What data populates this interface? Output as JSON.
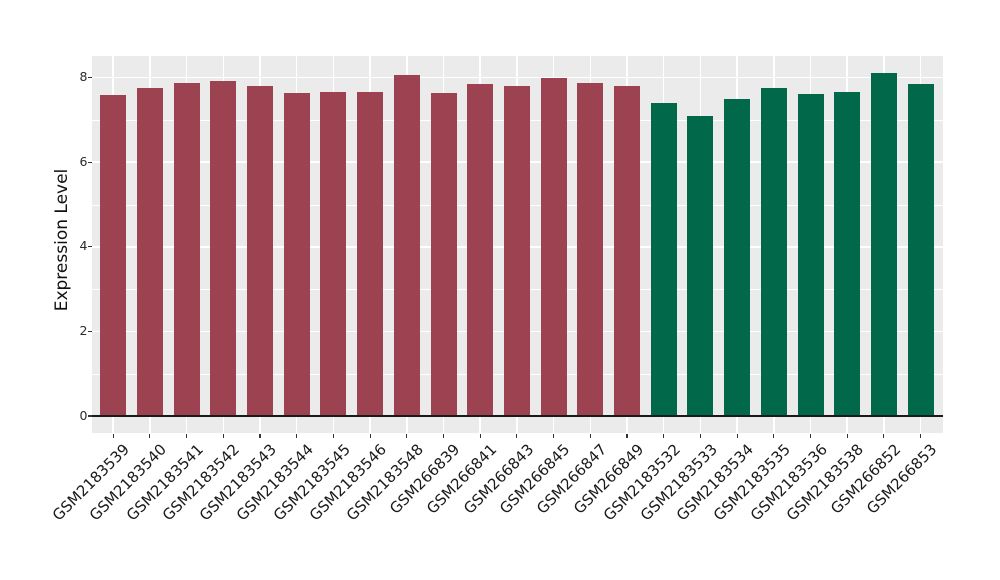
{
  "chart_data": {
    "type": "bar",
    "title": "",
    "xlabel": "",
    "ylabel": "Expression Level",
    "ylim": [
      0,
      8.5
    ],
    "yticks": [
      0,
      2,
      4,
      6,
      8
    ],
    "ytick_labels": [
      "0",
      "2",
      "4",
      "6",
      "8"
    ],
    "grid": "on",
    "legend_position": "none",
    "categories": [
      "GSM2183539",
      "GSM2183540",
      "GSM2183541",
      "GSM2183542",
      "GSM2183543",
      "GSM2183544",
      "GSM2183545",
      "GSM2183546",
      "GSM2183548",
      "GSM266839",
      "GSM266841",
      "GSM266843",
      "GSM266845",
      "GSM266847",
      "GSM266849",
      "GSM2183532",
      "GSM2183533",
      "GSM2183534",
      "GSM2183535",
      "GSM2183536",
      "GSM2183538",
      "GSM266852",
      "GSM266853"
    ],
    "values": [
      7.59,
      7.75,
      7.87,
      7.92,
      7.81,
      7.63,
      7.66,
      7.67,
      8.05,
      7.64,
      7.84,
      7.81,
      7.99,
      7.87,
      7.81,
      7.4,
      7.1,
      7.49,
      7.75,
      7.62,
      7.66,
      8.11,
      7.85
    ],
    "series": [
      {
        "name": "group-maroon",
        "color": "#9D4251",
        "start_index": 0,
        "count": 15
      },
      {
        "name": "group-green",
        "color": "#02684A",
        "start_index": 15,
        "count": 8
      }
    ],
    "colors": {
      "panel_background": "#EBEBEB",
      "grid": "#FFFFFF",
      "zero_line": "#1a1a1a",
      "bar_maroon": "#9D4251",
      "bar_green": "#02684A",
      "axis_text": "#2b2b2b",
      "axis_title": "#111111"
    }
  }
}
